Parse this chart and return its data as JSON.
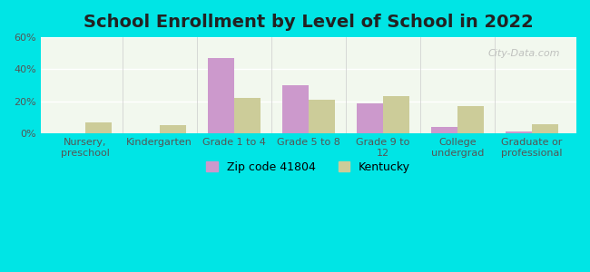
{
  "title": "School Enrollment by Level of School in 2022",
  "categories": [
    "Nursery,\npreschool",
    "Kindergarten",
    "Grade 1 to 4",
    "Grade 5 to 8",
    "Grade 9 to\n12",
    "College\nundergrad",
    "Graduate or\nprofessional"
  ],
  "zip_values": [
    0,
    0,
    47,
    30,
    19,
    4,
    1
  ],
  "ky_values": [
    7,
    5,
    22,
    21,
    23,
    17,
    6
  ],
  "zip_color": "#cc99cc",
  "ky_color": "#cccc99",
  "background_outer": "#00e5e5",
  "background_inner": "#f2f8ee",
  "ylim": [
    0,
    60
  ],
  "yticks": [
    0,
    20,
    40,
    60
  ],
  "ytick_labels": [
    "0%",
    "20%",
    "40%",
    "60%"
  ],
  "legend_zip_label": "Zip code 41804",
  "legend_ky_label": "Kentucky",
  "bar_width": 0.35,
  "title_fontsize": 14,
  "tick_fontsize": 8,
  "legend_fontsize": 9
}
